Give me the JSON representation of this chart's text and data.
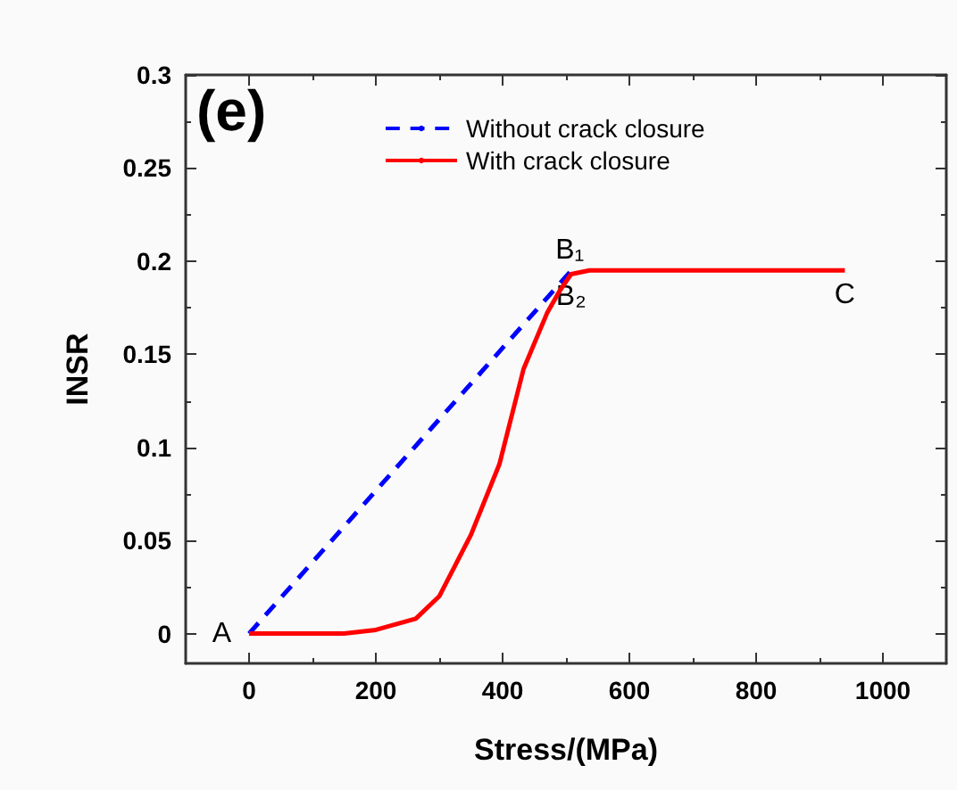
{
  "chart_data": {
    "type": "line",
    "xlabel": "Stress/(MPa)",
    "ylabel": "INSR",
    "xlim": [
      -100,
      1100
    ],
    "xticks": [
      0,
      200,
      400,
      600,
      800,
      1000
    ],
    "ylim": [
      -0.016,
      0.3
    ],
    "yticks": [
      0,
      0.05,
      0.1,
      0.15,
      0.2,
      0.25,
      0.3
    ],
    "grid": false,
    "legend": "top",
    "marker": "none",
    "annotations": [
      "(e)",
      {
        "text": "A",
        "x": 0,
        "y": 0
      },
      {
        "text": "B₁",
        "x": 506,
        "y": 0.194
      },
      {
        "text": "B₂",
        "x": 508,
        "y": 0.194
      },
      {
        "text": "C",
        "x": 940,
        "y": 0.195
      }
    ],
    "series": [
      {
        "name": "Without crack closure",
        "color": "#0000ff",
        "line_style": "dashed",
        "x": [
          0,
          506
        ],
        "values": [
          0,
          0.194
        ]
      },
      {
        "name": "With crack closure",
        "color": "#ff0000",
        "line_style": "solid",
        "x": [
          0,
          150,
          200,
          263,
          300,
          350,
          395,
          433,
          470,
          490,
          508,
          537,
          940
        ],
        "values": [
          0,
          0,
          0.002,
          0.008,
          0.02,
          0.053,
          0.091,
          0.142,
          0.172,
          0.184,
          0.193,
          0.195,
          0.195
        ]
      }
    ]
  }
}
